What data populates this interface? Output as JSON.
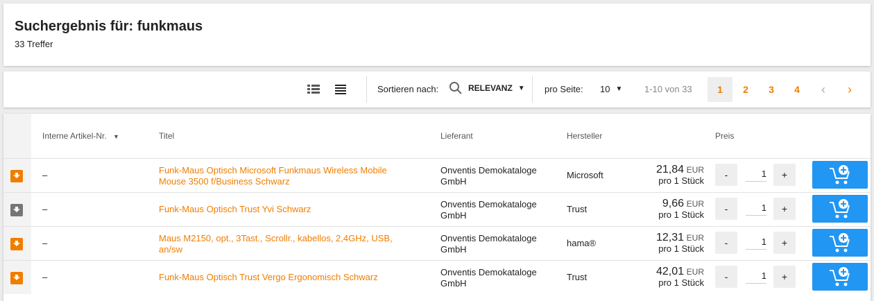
{
  "header": {
    "title": "Suchergebnis für: funkmaus",
    "count": "33 Treffer"
  },
  "toolbar": {
    "sort_label": "Sortieren nach:",
    "sort_value": "RELEVANZ",
    "per_page_label": "pro Seite:",
    "per_page_value": "10",
    "range": "1-10 von 33",
    "pages": [
      "1",
      "2",
      "3",
      "4"
    ],
    "current_page": "1"
  },
  "table": {
    "headers": {
      "article": "Interne Artikel-Nr.",
      "title": "Titel",
      "supplier": "Lieferant",
      "manufacturer": "Hersteller",
      "price": "Preis"
    },
    "rows": [
      {
        "article": "–",
        "title": "Funk-Maus Optisch Microsoft Funkmaus Wireless Mobile Mouse 3500 f/Business Schwarz",
        "supplier": "Onventis Demokataloge GmbH",
        "manufacturer": "Microsoft",
        "price": "21,84",
        "currency": "EUR",
        "unit": "pro 1 Stück",
        "qty": "1",
        "icon_color": "#f07d00"
      },
      {
        "article": "–",
        "title": "Funk-Maus Optisch Trust Yvi Schwarz",
        "supplier": "Onventis Demokataloge GmbH",
        "manufacturer": "Trust",
        "price": "9,66",
        "currency": "EUR",
        "unit": "pro 1 Stück",
        "qty": "1",
        "icon_color": "#757575"
      },
      {
        "article": "–",
        "title": "Maus M2150, opt., 3Tast., Scrollr., kabellos, 2,4GHz, USB, an/sw",
        "supplier": "Onventis Demokataloge GmbH",
        "manufacturer": "hama®",
        "price": "12,31",
        "currency": "EUR",
        "unit": "pro 1 Stück",
        "qty": "1",
        "icon_color": "#f07d00"
      },
      {
        "article": "–",
        "title": "Funk-Maus Optisch Trust Vergo Ergonomisch Schwarz",
        "supplier": "Onventis Demokataloge GmbH",
        "manufacturer": "Trust",
        "price": "42,01",
        "currency": "EUR",
        "unit": "pro 1 Stück",
        "qty": "1",
        "icon_color": "#f07d00"
      }
    ]
  },
  "buttons": {
    "minus": "-",
    "plus": "+"
  }
}
